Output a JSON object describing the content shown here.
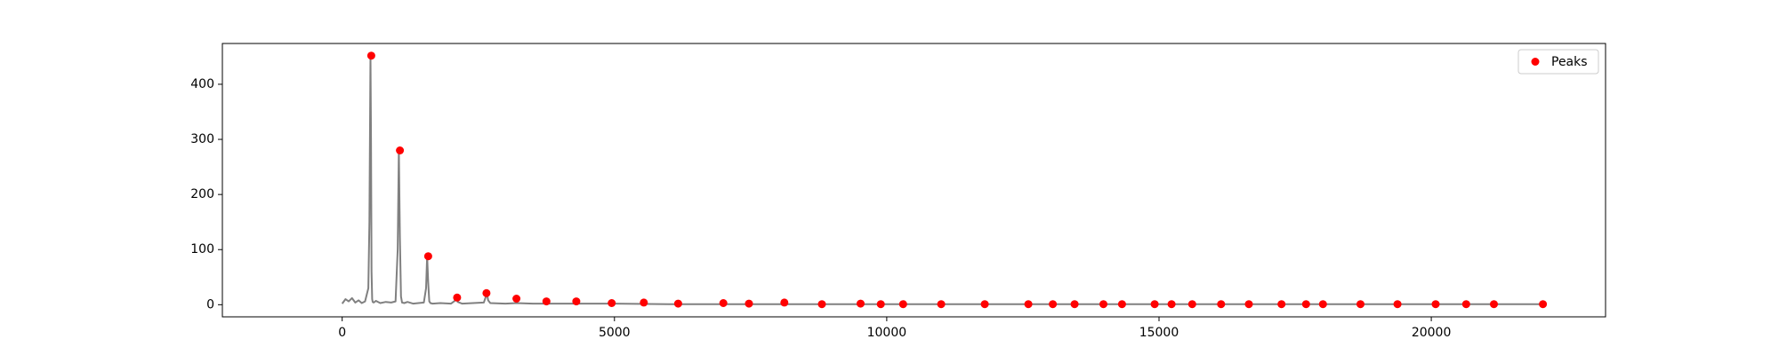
{
  "chart_data": {
    "type": "line",
    "title": "",
    "xlabel": "",
    "ylabel": "",
    "xlim": [
      -2200,
      23200
    ],
    "ylim": [
      -22,
      474
    ],
    "xticks": [
      0,
      5000,
      10000,
      15000,
      20000
    ],
    "yticks": [
      0,
      100,
      200,
      300,
      400
    ],
    "grid": false,
    "legend": {
      "position": "top-right",
      "entries": [
        "Peaks"
      ]
    },
    "colors": {
      "line": "#808080",
      "peaks": "#ff0000",
      "axes": "#000000"
    },
    "series": [
      {
        "kind": "line",
        "x": [
          0,
          60,
          120,
          180,
          240,
          300,
          360,
          420,
          480,
          500,
          520,
          530,
          540,
          550,
          560,
          580,
          620,
          700,
          800,
          900,
          980,
          1020,
          1040,
          1060,
          1080,
          1100,
          1140,
          1200,
          1300,
          1400,
          1500,
          1540,
          1560,
          1580,
          1600,
          1620,
          1660,
          1800,
          2000,
          2080,
          2100,
          2120,
          2200,
          2400,
          2600,
          2640,
          2660,
          2680,
          2720,
          3000,
          3200,
          3500,
          4000,
          5000,
          6000,
          7000,
          8000,
          9000,
          10000,
          11000,
          12000,
          13000,
          14000,
          15000,
          16000,
          17000,
          18000,
          19000,
          20000,
          21000,
          22000
        ],
        "y": [
          2,
          10,
          6,
          12,
          4,
          8,
          3,
          6,
          30,
          150,
          452,
          300,
          60,
          10,
          5,
          4,
          7,
          3,
          5,
          4,
          6,
          100,
          280,
          120,
          15,
          4,
          3,
          5,
          2,
          3,
          4,
          30,
          88,
          40,
          6,
          3,
          2,
          3,
          2,
          8,
          12,
          5,
          2,
          3,
          4,
          15,
          20,
          8,
          3,
          2,
          3,
          2,
          2,
          2,
          1,
          1,
          1,
          1,
          1,
          1,
          1,
          1,
          1,
          1,
          1,
          1,
          1,
          1,
          1,
          1,
          1
        ]
      },
      {
        "kind": "scatter",
        "name": "Peaks",
        "x": [
          535,
          1060,
          1580,
          2110,
          2650,
          3200,
          3750,
          4300,
          4950,
          5540,
          6170,
          7000,
          7470,
          8120,
          8810,
          9520,
          9890,
          10300,
          11000,
          11800,
          12600,
          13050,
          13450,
          13980,
          14320,
          14920,
          15230,
          15610,
          16140,
          16650,
          17250,
          17700,
          18010,
          18700,
          19380,
          20080,
          20640,
          21150,
          22050
        ],
        "y": [
          452,
          280,
          88,
          13,
          21,
          11,
          6,
          6,
          3,
          4,
          2,
          3,
          2,
          4,
          1,
          2,
          1,
          1,
          1,
          1,
          1,
          1,
          1,
          1,
          1,
          1,
          1,
          1,
          1,
          1,
          1,
          1,
          1,
          1,
          1,
          1,
          1,
          1,
          1
        ]
      }
    ]
  }
}
